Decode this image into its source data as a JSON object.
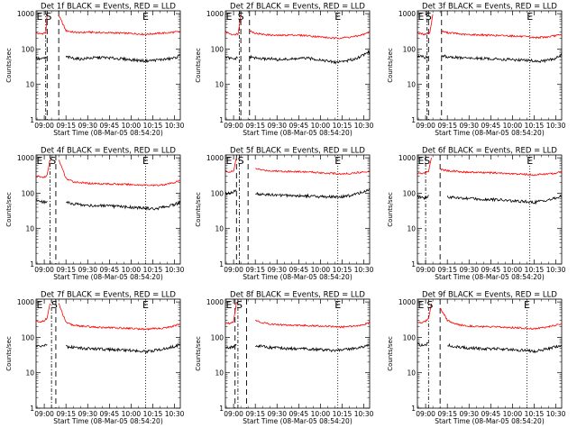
{
  "chart_data": {
    "type": "line",
    "grid": false,
    "x_ticks": [
      "09:00",
      "09:15",
      "09:30",
      "09:45",
      "10:00",
      "10:15",
      "10:30"
    ],
    "x_range": [
      "08:54:20",
      "10:34:00"
    ],
    "y_ticks": [
      "1",
      "10",
      "100",
      "1000"
    ],
    "ylim": [
      1,
      1200
    ],
    "y_scale": "log",
    "ylabel": "Counts/sec",
    "xlabel": "Start Time (08-Mar-05 08:54:20)",
    "series_colors": {
      "events": "#000000",
      "lld": "#ff0000"
    },
    "panels": [
      {
        "title": "Det 1f BLACK = Events, RED = LLD",
        "x": [
          "08:54:20",
          "08:57",
          "08:59",
          "09:00",
          "09:01",
          "09:02",
          "09:04",
          "09:06",
          "09:08",
          "09:10",
          "09:15",
          "09:20",
          "09:25",
          "09:30",
          "09:40",
          "09:50",
          "10:00",
          "10:10",
          "10:15",
          "10:20",
          "10:25",
          "10:30",
          "10:34"
        ],
        "lld": [
          280,
          270,
          275,
          290,
          270,
          950,
          null,
          null,
          null,
          900,
          330,
          300,
          290,
          300,
          290,
          285,
          275,
          260,
          270,
          280,
          285,
          300,
          310
        ],
        "events": [
          55,
          52,
          53,
          56,
          54,
          60,
          null,
          null,
          null,
          null,
          60,
          55,
          52,
          55,
          58,
          54,
          50,
          46,
          48,
          50,
          52,
          56,
          65
        ],
        "gap_events_until": "09:10",
        "markers": {
          "S": "09:03",
          "E": "10:10"
        },
        "lines": {
          "dash_dot": "09:01",
          "dash": [
            "09:02",
            "09:10"
          ],
          "dot": "10:10"
        }
      },
      {
        "title": "Det 2f BLACK = Events, RED = LLD",
        "x": [
          "08:54:20",
          "08:57",
          "09:00",
          "09:02",
          "09:03",
          "09:05",
          "09:07",
          "09:09",
          "09:11",
          "09:15",
          "09:20",
          "09:25",
          "09:30",
          "09:40",
          "09:50",
          "10:00",
          "10:10",
          "10:15",
          "10:20",
          "10:25",
          "10:30",
          "10:34"
        ],
        "lld": [
          300,
          280,
          250,
          270,
          260,
          900,
          null,
          null,
          330,
          280,
          260,
          250,
          240,
          250,
          240,
          220,
          200,
          210,
          215,
          230,
          260,
          300
        ],
        "events": [
          60,
          55,
          52,
          55,
          56,
          null,
          null,
          null,
          60,
          56,
          52,
          54,
          50,
          52,
          55,
          50,
          42,
          45,
          48,
          55,
          70,
          85
        ],
        "markers": {
          "S": "09:05",
          "E": "10:12"
        },
        "lines": {
          "dash_dot": "09:04",
          "dash": [
            "09:05",
            "09:11"
          ],
          "dot": "10:12"
        }
      },
      {
        "title": "Det 3f BLACK = Events, RED = LLD",
        "x": [
          "08:54:20",
          "08:57",
          "09:00",
          "09:02",
          "09:03",
          "09:05",
          "09:07",
          "09:09",
          "09:11",
          "09:15",
          "09:20",
          "09:25",
          "09:30",
          "09:40",
          "09:50",
          "10:00",
          "10:10",
          "10:15",
          "10:20",
          "10:25",
          "10:30",
          "10:34"
        ],
        "lld": [
          280,
          270,
          260,
          280,
          300,
          950,
          null,
          null,
          320,
          290,
          280,
          260,
          255,
          250,
          240,
          235,
          220,
          210,
          215,
          220,
          240,
          250
        ],
        "events": [
          65,
          60,
          58,
          62,
          null,
          null,
          null,
          null,
          65,
          60,
          58,
          56,
          55,
          54,
          52,
          50,
          48,
          46,
          45,
          48,
          55,
          70
        ],
        "markers": {
          "S": "09:02",
          "E": "10:12"
        },
        "lines": {
          "dash_dot": "09:01",
          "dash": [
            "09:02",
            "09:11"
          ],
          "dot": "10:12"
        }
      },
      {
        "title": "Det 4f BLACK = Events, RED = LLD",
        "x": [
          "08:54:20",
          "08:57",
          "09:00",
          "09:02",
          "09:04",
          "09:06",
          "09:08",
          "09:10",
          "09:15",
          "09:20",
          "09:25",
          "09:30",
          "09:40",
          "09:50",
          "10:00",
          "10:10",
          "10:15",
          "10:20",
          "10:25",
          "10:30",
          "10:34"
        ],
        "lld": [
          300,
          290,
          280,
          320,
          900,
          null,
          null,
          900,
          260,
          210,
          200,
          190,
          185,
          180,
          175,
          170,
          165,
          170,
          180,
          200,
          230
        ],
        "events": [
          65,
          60,
          55,
          60,
          null,
          null,
          null,
          null,
          55,
          50,
          48,
          45,
          44,
          42,
          40,
          38,
          36,
          38,
          42,
          48,
          55
        ],
        "markers": {
          "S": "09:06",
          "E": "10:10"
        },
        "lines": {
          "dash_dot": "09:04",
          "dash": [
            "09:08"
          ],
          "dot": "10:10"
        }
      },
      {
        "title": "Det 5f BLACK = Events, RED = LLD",
        "x": [
          "08:54:20",
          "08:57",
          "09:00",
          "09:02",
          "09:04",
          "09:06",
          "09:08",
          "09:10",
          "09:15",
          "09:20",
          "09:25",
          "09:30",
          "09:40",
          "09:50",
          "10:00",
          "10:10",
          "10:15",
          "10:20",
          "10:25",
          "10:30",
          "10:34"
        ],
        "lld": [
          420,
          400,
          420,
          1000,
          null,
          null,
          null,
          null,
          500,
          450,
          430,
          420,
          410,
          400,
          380,
          360,
          350,
          360,
          380,
          400,
          420
        ],
        "events": [
          95,
          100,
          110,
          120,
          null,
          null,
          null,
          null,
          95,
          92,
          90,
          88,
          86,
          84,
          80,
          78,
          80,
          85,
          95,
          110,
          130
        ],
        "markers": {
          "S": "09:05",
          "E": "10:12"
        },
        "lines": {
          "dash_dot": "09:04",
          "dash": [
            "09:02",
            "09:10"
          ],
          "dot": "10:12"
        }
      },
      {
        "title": "Det 6f BLACK = Events, RED = LLD",
        "x": [
          "08:54:20",
          "08:57",
          "09:00",
          "09:02",
          "09:04",
          "09:06",
          "09:08",
          "09:10",
          "09:15",
          "09:20",
          "09:25",
          "09:30",
          "09:40",
          "09:50",
          "10:00",
          "10:10",
          "10:15",
          "10:20",
          "10:25",
          "10:30",
          "10:34"
        ],
        "lld": [
          370,
          360,
          380,
          420,
          1000,
          null,
          null,
          480,
          430,
          420,
          400,
          390,
          380,
          370,
          350,
          340,
          330,
          340,
          350,
          370,
          400
        ],
        "events": [
          80,
          75,
          70,
          90,
          null,
          null,
          null,
          null,
          80,
          75,
          72,
          70,
          68,
          65,
          60,
          58,
          55,
          60,
          65,
          72,
          80
        ],
        "markers": {
          "S": "09:01",
          "E": "10:12"
        },
        "lines": {
          "dash_dot": "09:00",
          "dash": [
            "09:10"
          ],
          "dot": "10:12"
        }
      },
      {
        "title": "Det 7f BLACK = Events, RED = LLD",
        "x": [
          "08:54:20",
          "08:57",
          "09:00",
          "09:02",
          "09:04",
          "09:06",
          "09:08",
          "09:10",
          "09:15",
          "09:20",
          "09:25",
          "09:30",
          "09:40",
          "09:50",
          "10:00",
          "10:10",
          "10:15",
          "10:20",
          "10:25",
          "10:30",
          "10:34"
        ],
        "lld": [
          280,
          270,
          300,
          350,
          900,
          null,
          null,
          900,
          260,
          220,
          210,
          200,
          190,
          185,
          180,
          170,
          175,
          180,
          190,
          210,
          240
        ],
        "events": [
          60,
          55,
          58,
          62,
          null,
          null,
          null,
          null,
          55,
          52,
          50,
          48,
          46,
          45,
          43,
          40,
          42,
          45,
          50,
          55,
          65
        ],
        "markers": {
          "S": "09:07",
          "E": "10:10"
        },
        "lines": {
          "dash_dot": "09:05",
          "dash": [
            "09:08"
          ],
          "dot": "10:10"
        }
      },
      {
        "title": "Det 8f BLACK = Events, RED = LLD",
        "x": [
          "08:54:20",
          "08:57",
          "09:00",
          "09:02",
          "09:04",
          "09:06",
          "09:08",
          "09:10",
          "09:15",
          "09:20",
          "09:25",
          "09:30",
          "09:40",
          "09:50",
          "10:00",
          "10:10",
          "10:15",
          "10:20",
          "10:25",
          "10:30",
          "10:34"
        ],
        "lld": [
          260,
          250,
          280,
          1000,
          null,
          null,
          null,
          null,
          300,
          260,
          240,
          230,
          220,
          215,
          210,
          200,
          195,
          205,
          215,
          230,
          260
        ],
        "events": [
          55,
          52,
          56,
          60,
          null,
          null,
          null,
          null,
          58,
          55,
          52,
          50,
          48,
          47,
          45,
          42,
          44,
          46,
          50,
          55,
          60
        ],
        "markers": {
          "S": "09:04",
          "E": "10:12"
        },
        "lines": {
          "dash_dot": "09:03",
          "dash": [
            "09:01",
            "09:09"
          ],
          "dot": "10:12"
        }
      },
      {
        "title": "Det 9f BLACK = Events, RED = LLD",
        "x": [
          "08:54:20",
          "08:57",
          "09:00",
          "09:02",
          "09:04",
          "09:06",
          "09:08",
          "09:10",
          "09:15",
          "09:20",
          "09:25",
          "09:30",
          "09:40",
          "09:50",
          "10:00",
          "10:10",
          "10:15",
          "10:20",
          "10:25",
          "10:30",
          "10:34"
        ],
        "lld": [
          270,
          260,
          290,
          330,
          900,
          null,
          null,
          700,
          300,
          240,
          220,
          210,
          200,
          195,
          190,
          180,
          175,
          185,
          200,
          220,
          240
        ],
        "events": [
          65,
          60,
          62,
          70,
          null,
          null,
          null,
          null,
          60,
          55,
          52,
          50,
          48,
          47,
          45,
          42,
          40,
          44,
          48,
          55,
          60
        ],
        "markers": {
          "S": "09:03",
          "E": "10:10"
        },
        "lines": {
          "dash_dot": "09:02",
          "dash": [
            "09:10"
          ],
          "dot": "10:10"
        }
      }
    ]
  }
}
